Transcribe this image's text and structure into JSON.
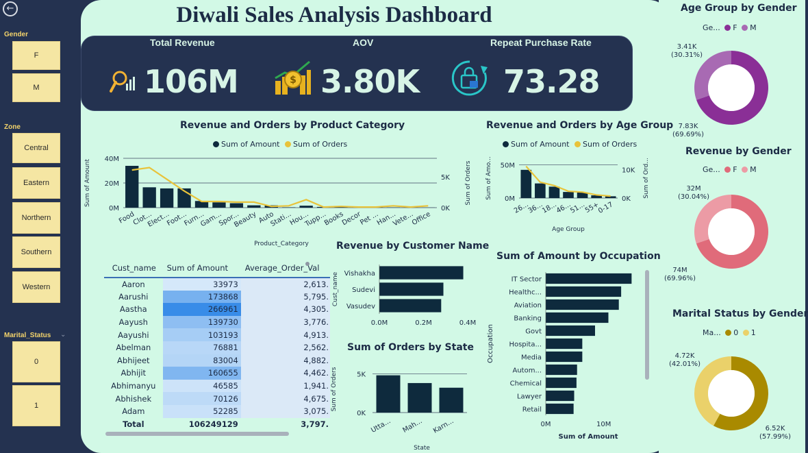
{
  "title": "Diwali Sales Analysis Dashboard",
  "slicers": {
    "gender": {
      "title": "Gender",
      "items": [
        "F",
        "M"
      ]
    },
    "zone": {
      "title": "Zone",
      "items": [
        "Central",
        "Eastern",
        "Northern",
        "Southern",
        "Western"
      ]
    },
    "marital": {
      "title": "Marital_Status",
      "items": [
        "0",
        "1"
      ]
    }
  },
  "kpis": [
    {
      "label": "Total Revenue",
      "value": "106M",
      "icon": "magnifier-bar-chart-icon"
    },
    {
      "label": "AOV",
      "value": "3.80K",
      "icon": "money-growth-icon"
    },
    {
      "label": "Repeat Purchase Rate",
      "value": "73.28",
      "icon": "repeat-shopping-bag-icon"
    }
  ],
  "colors": {
    "navy": "#0e2a3d",
    "gold": "#e8c33a",
    "purple_dark": "#8a2f96",
    "purple_light": "#a86ab3",
    "pink_dark": "#e06b7a",
    "pink_light": "#ec9ba5",
    "olive_dark": "#a98a00",
    "olive_light": "#ead16a"
  },
  "category_chart": {
    "title": "Revenue and Orders by Product Category",
    "legend": [
      "Sum of Amount",
      "Sum of Orders"
    ],
    "xlabel": "Product_Category",
    "ylabel_left": "Sum of Amount",
    "ylabel_right": "Sum of Orders",
    "left_ticks": [
      "0M",
      "20M",
      "40M"
    ],
    "right_ticks": [
      "0K",
      "5K"
    ],
    "tick_labels": [
      "Food",
      "Clot...",
      "Elect...",
      "Foot...",
      "Furn...",
      "Gam...",
      "Spor...",
      "Beauty",
      "Auto",
      "Stati...",
      "Hou...",
      "Tupp...",
      "Books",
      "Decor",
      "Pet ...",
      "Han...",
      "Vete...",
      "Office"
    ]
  },
  "age_chart": {
    "title": "Revenue and Orders by Age Group",
    "legend": [
      "Sum of Amount",
      "Sum of Orders"
    ],
    "xlabel": "Age Group",
    "ylabel_left": "Sum of Amo...",
    "ylabel_right": "Sum of Ord...",
    "left_ticks": [
      "0M",
      "50M"
    ],
    "right_ticks": [
      "0K",
      "10K"
    ],
    "tick_labels": [
      "26...",
      "36...",
      "18...",
      "46...",
      "51...",
      "55+",
      "0-17"
    ]
  },
  "customer_table": {
    "headers": [
      "Cust_name",
      "Sum of Amount",
      "Average_Order_Val"
    ],
    "rows": [
      [
        "Aaron",
        "33973",
        "2,613."
      ],
      [
        "Aarushi",
        "173868",
        "5,795."
      ],
      [
        "Aastha",
        "266961",
        "4,305."
      ],
      [
        "Aayush",
        "139730",
        "3,776."
      ],
      [
        "Aayushi",
        "103193",
        "4,913."
      ],
      [
        "Abelman",
        "76881",
        "2,562."
      ],
      [
        "Abhijeet",
        "83004",
        "4,882."
      ],
      [
        "Abhijit",
        "160655",
        "4,462."
      ],
      [
        "Abhimanyu",
        "46585",
        "1,941."
      ],
      [
        "Abhishek",
        "70126",
        "4,675."
      ],
      [
        "Adam",
        "52285",
        "3,075."
      ]
    ],
    "total": [
      "Total",
      "106249129",
      "3,797."
    ]
  },
  "customer_chart": {
    "title": "Revenue by Customer Name",
    "ylabel": "Cust_name",
    "ticks": [
      "0.0M",
      "0.2M",
      "0.4M"
    ]
  },
  "state_chart": {
    "title": "Sum of Orders by State",
    "ylabel": "Sum of Orders",
    "xlabel": "State",
    "ticks": [
      "0K",
      "5K"
    ],
    "tick_labels": [
      "Utta...",
      "Mah...",
      "Karn..."
    ]
  },
  "occupation_chart": {
    "title": "Sum of Amount by Occupation",
    "ylabel": "Occupation",
    "xlabel": "Sum of Amount",
    "ticks": [
      "0M",
      "10M"
    ]
  },
  "age_gender_donut": {
    "title": "Age Group by Gender",
    "legend_title": "Ge...",
    "legend": [
      "F",
      "M"
    ],
    "label_top": "3.41K",
    "label_top_pct": "(30.31%)",
    "label_bottom": "7.83K",
    "label_bottom_pct": "(69.69%)"
  },
  "revenue_gender_donut": {
    "title": "Revenue by Gender",
    "legend_title": "Ge...",
    "legend": [
      "F",
      "M"
    ],
    "label_top": "32M",
    "label_top_pct": "(30.04%)",
    "label_bottom": "74M",
    "label_bottom_pct": "(69.96%)"
  },
  "marital_gender_donut": {
    "title": "Marital Status by Gender",
    "legend_title": "Ma...",
    "legend": [
      "0",
      "1"
    ],
    "label_top": "4.72K",
    "label_top_pct": "(42.01%)",
    "label_bottom": "6.52K",
    "label_bottom_pct": "(57.99%)"
  },
  "chart_data": [
    {
      "type": "bar",
      "title": "Revenue and Orders by Product Category",
      "categories": [
        "Food",
        "Clothing",
        "Electronics",
        "Footwear",
        "Furniture",
        "Games",
        "Sports",
        "Beauty",
        "Auto",
        "Stationery",
        "Household",
        "Tupperware",
        "Books",
        "Decor",
        "Pet Care",
        "Handicraft",
        "Veterinary",
        "Office"
      ],
      "series": [
        {
          "name": "Sum of Amount",
          "axis": "left",
          "type": "bar",
          "values": [
            33.9,
            16.5,
            15.6,
            15.6,
            5.4,
            4.3,
            3.6,
            1.9,
            1.9,
            0.3,
            1.6,
            0.6,
            1.1,
            0.7,
            0.4,
            0.2,
            0.1,
            0.1
          ]
        },
        {
          "name": "Sum of Orders",
          "axis": "right",
          "type": "line",
          "values": [
            6.1,
            6.5,
            4.6,
            2.7,
            1.0,
            1.0,
            0.9,
            0.9,
            0.2,
            0.3,
            1.3,
            0.1,
            0.2,
            0.1,
            0.1,
            0.3,
            0.1,
            0.3
          ]
        }
      ],
      "ylim_left": [
        0,
        40
      ],
      "ylim_right": [
        0,
        8
      ]
    },
    {
      "type": "bar",
      "title": "Revenue and Orders by Age Group",
      "categories": [
        "26-35",
        "36-45",
        "18-25",
        "46-50",
        "51-55",
        "55+",
        "0-17"
      ],
      "series": [
        {
          "name": "Sum of Amount",
          "axis": "left",
          "type": "bar",
          "values": [
            42.6,
            22.1,
            17.2,
            9.2,
            8.3,
            4.1,
            2.7
          ]
        },
        {
          "name": "Sum of Orders",
          "axis": "right",
          "type": "line",
          "values": [
            11.2,
            5.6,
            4.4,
            2.4,
            2.1,
            1.1,
            0.7
          ]
        }
      ],
      "ylim_left": [
        0,
        60
      ],
      "ylim_right": [
        0,
        14
      ]
    },
    {
      "type": "bar",
      "title": "Revenue by Customer Name",
      "orientation": "horizontal",
      "categories": [
        "Vishakha",
        "Sudevi",
        "Vasudev"
      ],
      "values": [
        0.38,
        0.29,
        0.28
      ],
      "xlim": [
        0,
        0.4
      ]
    },
    {
      "type": "bar",
      "title": "Sum of Orders by State",
      "categories": [
        "Uttar Pradesh",
        "Maharashtra",
        "Karnataka"
      ],
      "values": [
        4.8,
        3.8,
        3.2
      ],
      "ylim": [
        0,
        6
      ]
    },
    {
      "type": "bar",
      "title": "Sum of Amount by Occupation",
      "orientation": "horizontal",
      "categories": [
        "IT Sector",
        "Healthc...",
        "Aviation",
        "Banking",
        "Govt",
        "Hospita...",
        "Media",
        "Autom...",
        "Chemical",
        "Lawyer",
        "Retail"
      ],
      "values": [
        14.8,
        13.0,
        12.6,
        10.8,
        8.5,
        6.3,
        6.3,
        5.4,
        5.3,
        4.9,
        4.8
      ],
      "xlim": [
        0,
        17
      ]
    },
    {
      "type": "pie",
      "title": "Age Group by Gender",
      "categories": [
        "F",
        "M"
      ],
      "values": [
        7.83,
        3.41
      ]
    },
    {
      "type": "pie",
      "title": "Revenue by Gender",
      "categories": [
        "F",
        "M"
      ],
      "values": [
        74,
        32
      ]
    },
    {
      "type": "pie",
      "title": "Marital Status by Gender",
      "categories": [
        "0",
        "1"
      ],
      "values": [
        6.52,
        4.72
      ]
    }
  ]
}
